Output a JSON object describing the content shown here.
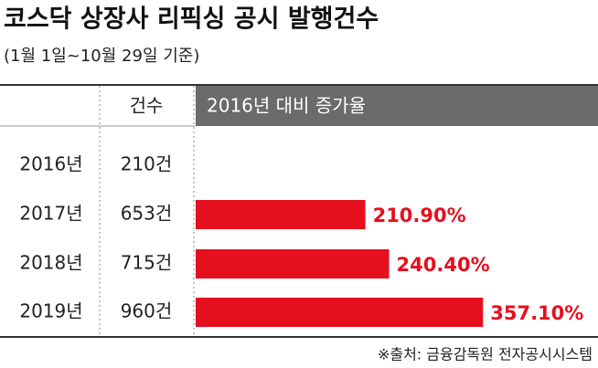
{
  "chart_data": {
    "type": "bar",
    "title": "코스닥 상장사 리픽싱 공시 발행건수",
    "subtitle": "(1월 1일~10월 29일 기준)",
    "column_headers": [
      "건수",
      "2016년 대비 증가율"
    ],
    "categories": [
      "2016년",
      "2017년",
      "2018년",
      "2019년"
    ],
    "counts": [
      "210건",
      "653건",
      "715건",
      "960건"
    ],
    "values": [
      null,
      210.9,
      240.4,
      357.1
    ],
    "value_labels": [
      null,
      "210.90%",
      "240.40%",
      "357.10%"
    ],
    "color": "#e60f1e",
    "source": "※출처: 금융감독원 전자공시시스템"
  }
}
